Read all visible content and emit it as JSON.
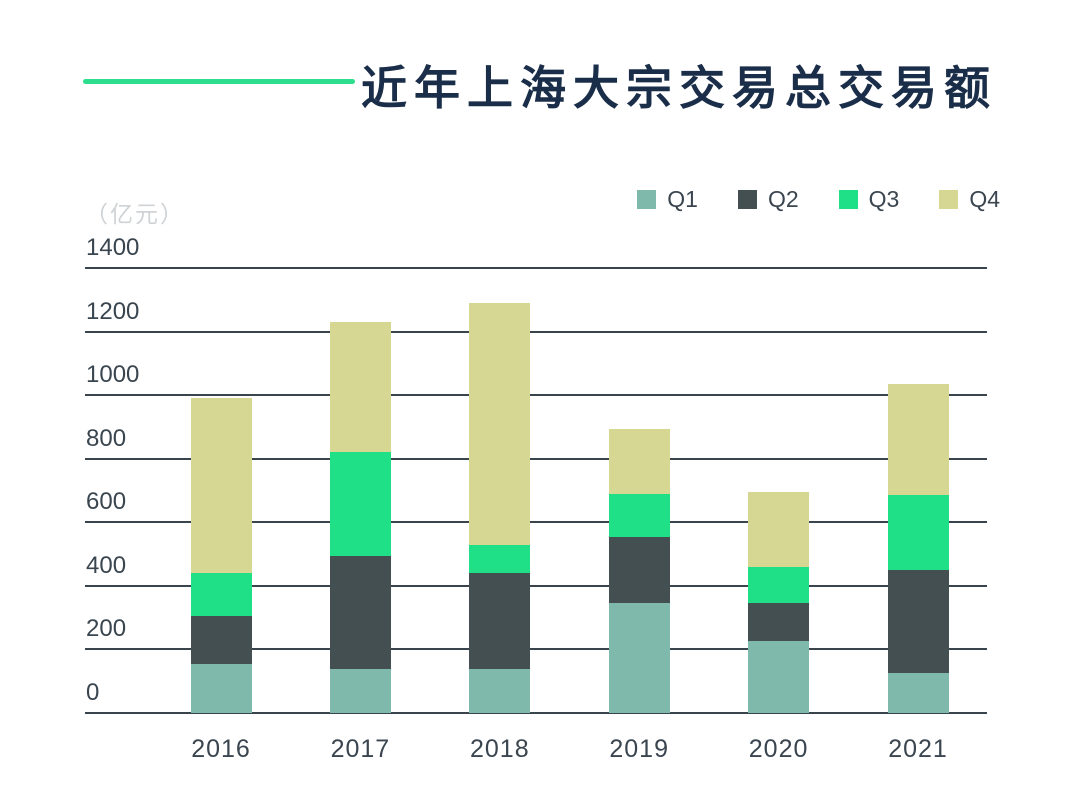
{
  "header": {
    "title": "近年上海大宗交易总交易额",
    "title_color": "#1a2e49",
    "accent_color": "#2edd8d"
  },
  "axis": {
    "unit_label": "（亿元）",
    "y_ticks": [
      1400,
      1200,
      1000,
      800,
      600,
      400,
      200,
      0
    ]
  },
  "chart_data": {
    "type": "bar",
    "stacked": true,
    "title": "近年上海大宗交易总交易额",
    "xlabel": "",
    "ylabel": "（亿元）",
    "ylim": [
      0,
      1400
    ],
    "grid": true,
    "legend_position": "top-right",
    "categories": [
      "2016",
      "2017",
      "2018",
      "2019",
      "2020",
      "2021"
    ],
    "series": [
      {
        "name": "Q1",
        "color": "#7fb9ab",
        "values": [
          155,
          140,
          140,
          345,
          225,
          125
        ]
      },
      {
        "name": "Q2",
        "color": "#434f51",
        "values": [
          150,
          355,
          300,
          210,
          120,
          325
        ]
      },
      {
        "name": "Q3",
        "color": "#1fe087",
        "values": [
          135,
          325,
          90,
          135,
          115,
          235
        ]
      },
      {
        "name": "Q4",
        "color": "#d6d792",
        "values": [
          550,
          410,
          760,
          205,
          235,
          350
        ]
      }
    ],
    "totals": [
      990,
      1230,
      1290,
      895,
      695,
      1035
    ]
  }
}
